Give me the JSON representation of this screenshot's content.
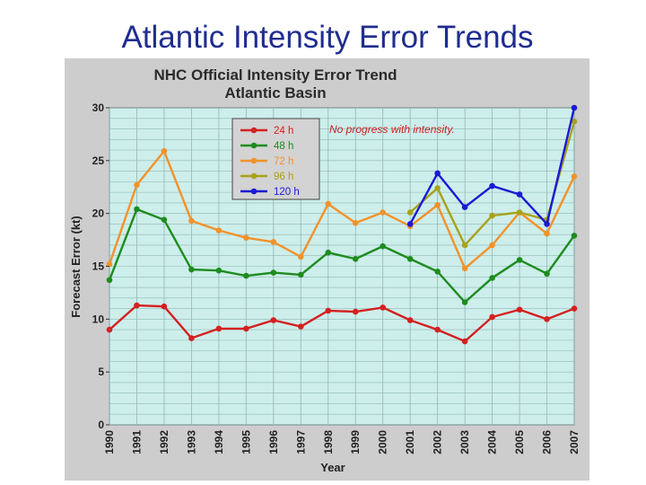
{
  "slide": {
    "title": "Atlantic Intensity Error Trends"
  },
  "chart_data": {
    "type": "line",
    "title": "NHC Official Intensity Error Trend",
    "subtitle": "Atlantic Basin",
    "xlabel": "Year",
    "ylabel": "Forecast Error (kt)",
    "ylim": [
      0,
      30
    ],
    "yticks": [
      0,
      5,
      10,
      15,
      20,
      25,
      30
    ],
    "x": [
      "1990",
      "1991",
      "1992",
      "1993",
      "1994",
      "1995",
      "1996",
      "1997",
      "1998",
      "1999",
      "2000",
      "2001",
      "2002",
      "2003",
      "2004",
      "2005",
      "2006",
      "2007"
    ],
    "grid": true,
    "legend_position": "top-left",
    "annotation": "No progress with intensity.",
    "series": [
      {
        "name": "24 h",
        "color": "#d42020",
        "values": [
          9.0,
          11.3,
          11.2,
          8.2,
          9.1,
          9.1,
          9.9,
          9.3,
          10.8,
          10.7,
          11.1,
          9.9,
          9.0,
          7.9,
          10.2,
          10.9,
          10.0,
          11.0
        ]
      },
      {
        "name": "48 h",
        "color": "#1e8c1e",
        "values": [
          13.7,
          20.4,
          19.4,
          14.7,
          14.6,
          14.1,
          14.4,
          14.2,
          16.3,
          15.7,
          16.9,
          15.7,
          14.5,
          11.6,
          13.9,
          15.6,
          14.3,
          17.9
        ]
      },
      {
        "name": "72 h",
        "color": "#f2922a",
        "values": [
          15.2,
          22.7,
          25.9,
          19.3,
          18.4,
          17.7,
          17.3,
          15.9,
          20.9,
          19.1,
          20.1,
          18.8,
          20.8,
          14.8,
          17.0,
          20.1,
          18.1,
          23.5
        ]
      },
      {
        "name": "96 h",
        "color": "#a8a21a",
        "values": [
          null,
          null,
          null,
          null,
          null,
          null,
          null,
          null,
          null,
          null,
          null,
          20.1,
          22.4,
          17.0,
          19.8,
          20.1,
          19.4,
          28.7
        ]
      },
      {
        "name": "120 h",
        "color": "#1a1ad4",
        "values": [
          null,
          null,
          null,
          null,
          null,
          null,
          null,
          null,
          null,
          null,
          null,
          19.0,
          23.8,
          20.6,
          22.6,
          21.8,
          19.0,
          30.0
        ]
      }
    ]
  }
}
